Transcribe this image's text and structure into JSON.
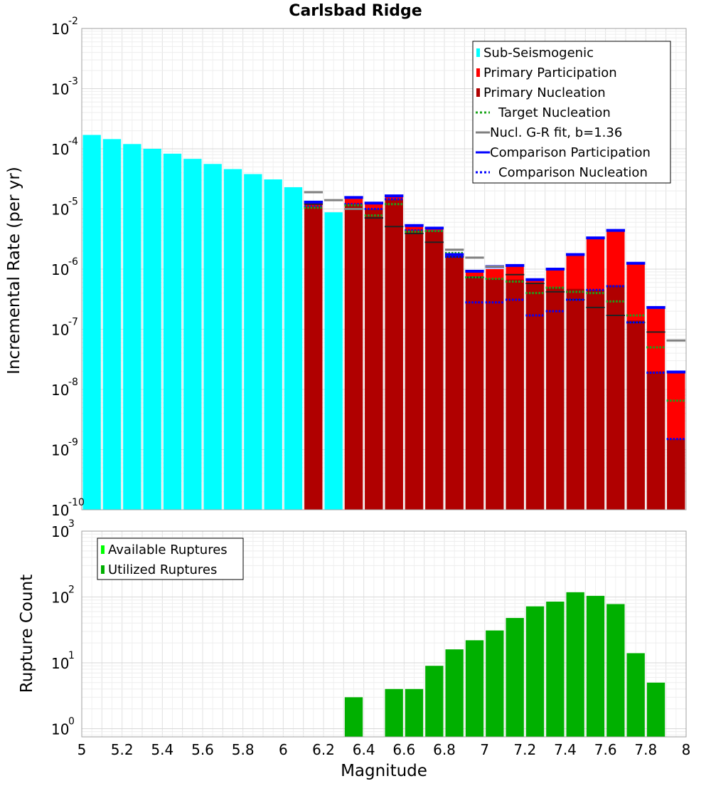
{
  "chart_data": [
    {
      "type": "bar",
      "id": "incremental-rate",
      "title": "Carlsbad Ridge",
      "xlabel": "",
      "ylabel": "Incremental Rate (per yr)",
      "yscale": "log",
      "ylim": [
        1e-10,
        0.01
      ],
      "xlim": [
        5.0,
        8.0
      ],
      "ytick_base": "10",
      "ytick_exps": [
        "-10",
        "-9",
        "-8",
        "-7",
        "-6",
        "-5",
        "-4",
        "-3",
        "-2"
      ],
      "legend": [
        {
          "label": "Sub-Seismogenic",
          "color": "#00ffff",
          "style": "bar"
        },
        {
          "label": "Primary Participation",
          "color": "#ff0000",
          "style": "bar"
        },
        {
          "label": "Primary Nucleation",
          "color": "#b00000",
          "style": "bar"
        },
        {
          "label": "Target Nucleation",
          "color": "#1aa51a",
          "style": "dotted"
        },
        {
          "label": "Nucl. G-R fit, b=1.36",
          "color": "#808080",
          "style": "solid"
        },
        {
          "label": "Comparison Participation",
          "color": "#0000ff",
          "style": "solid"
        },
        {
          "label": "Comparison Nucleation",
          "color": "#0000ff",
          "style": "dotted"
        }
      ],
      "sub_seismogenic": {
        "x": [
          5.05,
          5.15,
          5.25,
          5.35,
          5.45,
          5.55,
          5.65,
          5.75,
          5.85,
          5.95,
          6.05,
          6.25
        ],
        "values": [
          0.00017,
          0.000145,
          0.00012,
          0.0001,
          8.3e-05,
          6.8e-05,
          5.6e-05,
          4.6e-05,
          3.8e-05,
          3.1e-05,
          2.3e-05,
          8.8e-06
        ]
      },
      "primary": {
        "x": [
          6.15,
          6.35,
          6.45,
          6.55,
          6.65,
          6.75,
          6.85,
          6.95,
          7.05,
          7.15,
          7.25,
          7.35,
          7.45,
          7.55,
          7.65,
          7.75,
          7.85,
          7.95
        ],
        "participation": [
          1.25e-05,
          1.48e-05,
          1.2e-05,
          1.6e-05,
          5.1e-06,
          4.7e-06,
          1.7e-06,
          9e-07,
          1e-06,
          1.1e-06,
          6.5e-07,
          9.8e-07,
          1.7e-06,
          3.2e-06,
          4.2e-06,
          1.2e-06,
          2.2e-07,
          1.9e-08
        ],
        "nucleation": [
          1.1e-05,
          1.2e-05,
          1e-05,
          1.45e-05,
          4.4e-06,
          4.3e-06,
          1.6e-06,
          7.3e-07,
          6.9e-07,
          6.7e-07,
          5.8e-07,
          5e-07,
          4.7e-07,
          4.5e-07,
          5.4e-07,
          1.4e-07,
          2e-08,
          1.5e-09
        ],
        "target_nucleation": [
          1.05e-05,
          1.15e-05,
          7.8e-06,
          1.2e-05,
          4.2e-06,
          4.3e-06,
          1.85e-06,
          7.3e-07,
          6.9e-07,
          6.2e-07,
          4e-07,
          4.9e-07,
          4.2e-07,
          4e-07,
          2.9e-07,
          1.7e-07,
          5e-08,
          6.5e-09
        ],
        "gr_fit_primary": [
          1.2e-05,
          1e-05,
          7.1e-06,
          5.1e-06,
          3.9e-06,
          2.8e-06,
          1.6e-06,
          7.3e-07,
          1.1e-06,
          8.1e-07,
          5.8e-07,
          4.2e-07,
          3.1e-07,
          2.3e-07,
          1.7e-07,
          1.3e-07,
          9e-08,
          6.5e-08
        ],
        "comparison_participation": [
          1.3e-05,
          1.55e-05,
          1.25e-05,
          1.65e-05,
          5.3e-06,
          4.8e-06,
          1.75e-06,
          9.2e-07,
          1.1e-06,
          1.15e-06,
          6.7e-07,
          1e-06,
          1.75e-06,
          3.3e-06,
          4.4e-06,
          1.25e-06,
          2.3e-07,
          1.95e-08
        ],
        "comparison_nucleation": [
          1.1e-05,
          1.2e-05,
          1e-05,
          1.45e-05,
          4.4e-06,
          4.3e-06,
          1.6e-06,
          2.8e-07,
          2.8e-07,
          3.1e-07,
          1.7e-07,
          2e-07,
          3.1e-07,
          4.5e-07,
          5.2e-07,
          1.3e-07,
          1.9e-08,
          1.5e-09
        ]
      },
      "gr_fit_beyond": {
        "x": [
          6.15,
          6.25,
          6.35,
          6.85,
          6.95,
          7.05,
          7.95
        ],
        "values": [
          1.9e-05,
          1.4e-05,
          1e-05,
          2.1e-06,
          1.55e-06,
          1.1e-06,
          6.5e-08
        ]
      }
    },
    {
      "type": "bar",
      "id": "rupture-count",
      "xlabel": "Magnitude",
      "ylabel": "Rupture Count",
      "yscale": "log",
      "ylim": [
        0.75,
        1000
      ],
      "ytick_base": "10",
      "ytick_exps": [
        "0",
        "1",
        "2",
        "3"
      ],
      "xlim": [
        5.0,
        8.0
      ],
      "xticks": [
        "5",
        "5.2",
        "5.4",
        "5.6",
        "5.8",
        "6",
        "6.2",
        "6.4",
        "6.6",
        "6.8",
        "7",
        "7.2",
        "7.4",
        "7.6",
        "7.8",
        "8"
      ],
      "legend": [
        {
          "label": "Available Ruptures",
          "color": "#00ff00"
        },
        {
          "label": "Utilized Ruptures",
          "color": "#00b000"
        }
      ],
      "x": [
        6.35,
        6.55,
        6.65,
        6.75,
        6.85,
        6.95,
        7.05,
        7.15,
        7.25,
        7.35,
        7.45,
        7.55,
        7.65,
        7.75,
        7.85
      ],
      "values": [
        3,
        4,
        4,
        9,
        16,
        22,
        31,
        48,
        72,
        85,
        118,
        104,
        78,
        14,
        5
      ]
    }
  ]
}
